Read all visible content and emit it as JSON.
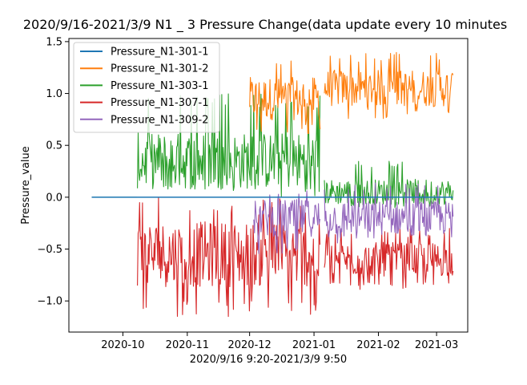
{
  "chart_data": {
    "type": "line",
    "title": "2020/9/16-2021/3/9 N1 _ 3 Pressure Change(data update every 10 minutes",
    "xlabel": "2020/9/16 9:20-2021/3/9 9:50",
    "ylabel": "Pressure_value",
    "x_range": [
      "2020-09-16",
      "2021-03-09"
    ],
    "x_ticks": [
      "2020-10",
      "2020-11",
      "2020-12",
      "2021-01",
      "2021-02",
      "2021-03"
    ],
    "ylim": [
      -1.3,
      1.53
    ],
    "y_ticks": [
      "1.5",
      "1.0",
      "0.5",
      "0.0",
      "−0.5",
      "−1.0"
    ],
    "y_tick_values": [
      1.5,
      1.0,
      0.5,
      0.0,
      -0.5,
      -1.0
    ],
    "grid": false,
    "legend_position": "top-left",
    "series": [
      {
        "name": "Pressure_N1-301-1",
        "color": "#1f77b4",
        "segments": [
          {
            "start": "2020-09-16",
            "end": "2021-03-09",
            "mean": 0.0,
            "low": 0.0,
            "high": 0.0
          }
        ]
      },
      {
        "name": "Pressure_N1-301-2",
        "color": "#ff7f0e",
        "segments": [
          {
            "start": "2020-12-01",
            "end": "2021-01-04",
            "mean": 0.95,
            "low": 0.6,
            "high": 1.35
          },
          {
            "start": "2021-01-06",
            "end": "2021-03-09",
            "mean": 1.05,
            "low": 0.75,
            "high": 1.4
          }
        ]
      },
      {
        "name": "Pressure_N1-303-1",
        "color": "#2ca02c",
        "segments": [
          {
            "start": "2020-09-16",
            "end": "2020-10-08",
            "mean": 0.0,
            "low": 0.0,
            "high": 0.0
          },
          {
            "start": "2020-10-08",
            "end": "2021-01-04",
            "mean": 0.35,
            "low": 0.0,
            "high": 1.0
          },
          {
            "start": "2021-01-06",
            "end": "2021-03-09",
            "mean": 0.05,
            "low": -0.1,
            "high": 0.35
          }
        ]
      },
      {
        "name": "Pressure_N1-307-1",
        "color": "#d62728",
        "segments": [
          {
            "start": "2020-10-08",
            "end": "2021-01-04",
            "mean": -0.55,
            "low": -1.15,
            "high": 0.0
          },
          {
            "start": "2021-01-06",
            "end": "2021-03-09",
            "mean": -0.6,
            "low": -0.9,
            "high": -0.3
          }
        ]
      },
      {
        "name": "Pressure_N1-309-2",
        "color": "#9467bd",
        "segments": [
          {
            "start": "2020-12-03",
            "end": "2021-01-04",
            "mean": -0.2,
            "low": -0.55,
            "high": 0.1
          },
          {
            "start": "2021-01-06",
            "end": "2021-03-09",
            "mean": -0.2,
            "low": -0.45,
            "high": 0.15
          }
        ]
      }
    ]
  }
}
